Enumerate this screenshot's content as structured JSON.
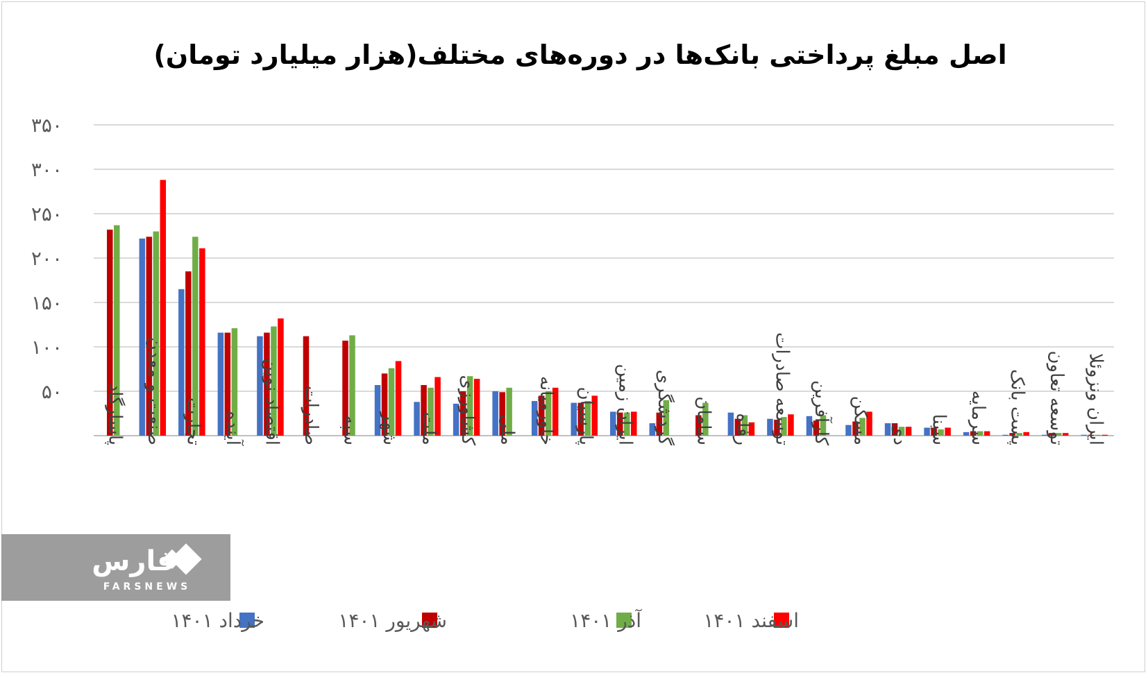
{
  "chart_data": {
    "type": "bar",
    "title": "اصل مبلغ پرداختی بانک‌ها در دوره‌های مختلف(هزار میلیارد تومان)",
    "ylim": [
      0,
      350
    ],
    "yticks": [
      50,
      100,
      150,
      200,
      250,
      300,
      350
    ],
    "ytick_labels": [
      "۵۰",
      "۱۰۰",
      "۱۵۰",
      "۲۰۰",
      "۲۵۰",
      "۳۰۰",
      "۳۵۰"
    ],
    "grid": true,
    "legend_position": "bottom",
    "categories": [
      "پاسارگاد",
      "صنعت و معدن",
      "تجارت",
      "آینده",
      "اقتصاد نوین",
      "صادرات",
      "سپه",
      "شهر",
      "ملت",
      "کشاورزی",
      "ملی",
      "خاورمیانه",
      "پارسیان",
      "ایران زمین",
      "گردشگری",
      "سامان",
      "رفاه",
      "توسعه صادرات",
      "کارآفرین",
      "مسکن",
      "دی",
      "سینا",
      "سرمایه",
      "پست بانک",
      "توسعه تعاون",
      "ایران ونزوئلا"
    ],
    "series": [
      {
        "name": "خرداد ۱۴۰۱",
        "color": "#4472c4",
        "values": [
          null,
          222,
          165,
          116,
          112,
          null,
          null,
          57,
          38,
          36,
          50,
          39,
          37,
          27,
          14,
          null,
          26,
          19,
          22,
          12,
          14,
          9,
          4,
          1,
          1,
          1
        ]
      },
      {
        "name": "شهریور ۱۴۰۱",
        "color": "#c00000",
        "values": [
          232,
          224,
          185,
          116,
          116,
          112,
          107,
          70,
          57,
          50,
          49,
          45,
          37,
          26,
          26,
          23,
          19,
          18,
          17,
          16,
          14,
          9,
          5,
          3,
          3,
          1
        ]
      },
      {
        "name": "آذر ۱۴۰۱",
        "color": "#70ad47",
        "values": [
          237,
          230,
          224,
          121,
          123,
          null,
          113,
          76,
          54,
          67,
          54,
          50,
          39,
          26,
          40,
          37,
          23,
          21,
          23,
          20,
          10,
          7,
          5,
          3,
          3,
          1
        ]
      },
      {
        "name": "اسفند ۱۴۰۱",
        "color": "#ff0000",
        "values": [
          null,
          288,
          211,
          null,
          132,
          null,
          null,
          84,
          66,
          64,
          null,
          54,
          45,
          27,
          null,
          null,
          15,
          24,
          null,
          27,
          10,
          9,
          5,
          4,
          3,
          1
        ]
      }
    ]
  },
  "watermark": {
    "logo_text": "فارس",
    "sub_text": "FARSNEWS"
  }
}
